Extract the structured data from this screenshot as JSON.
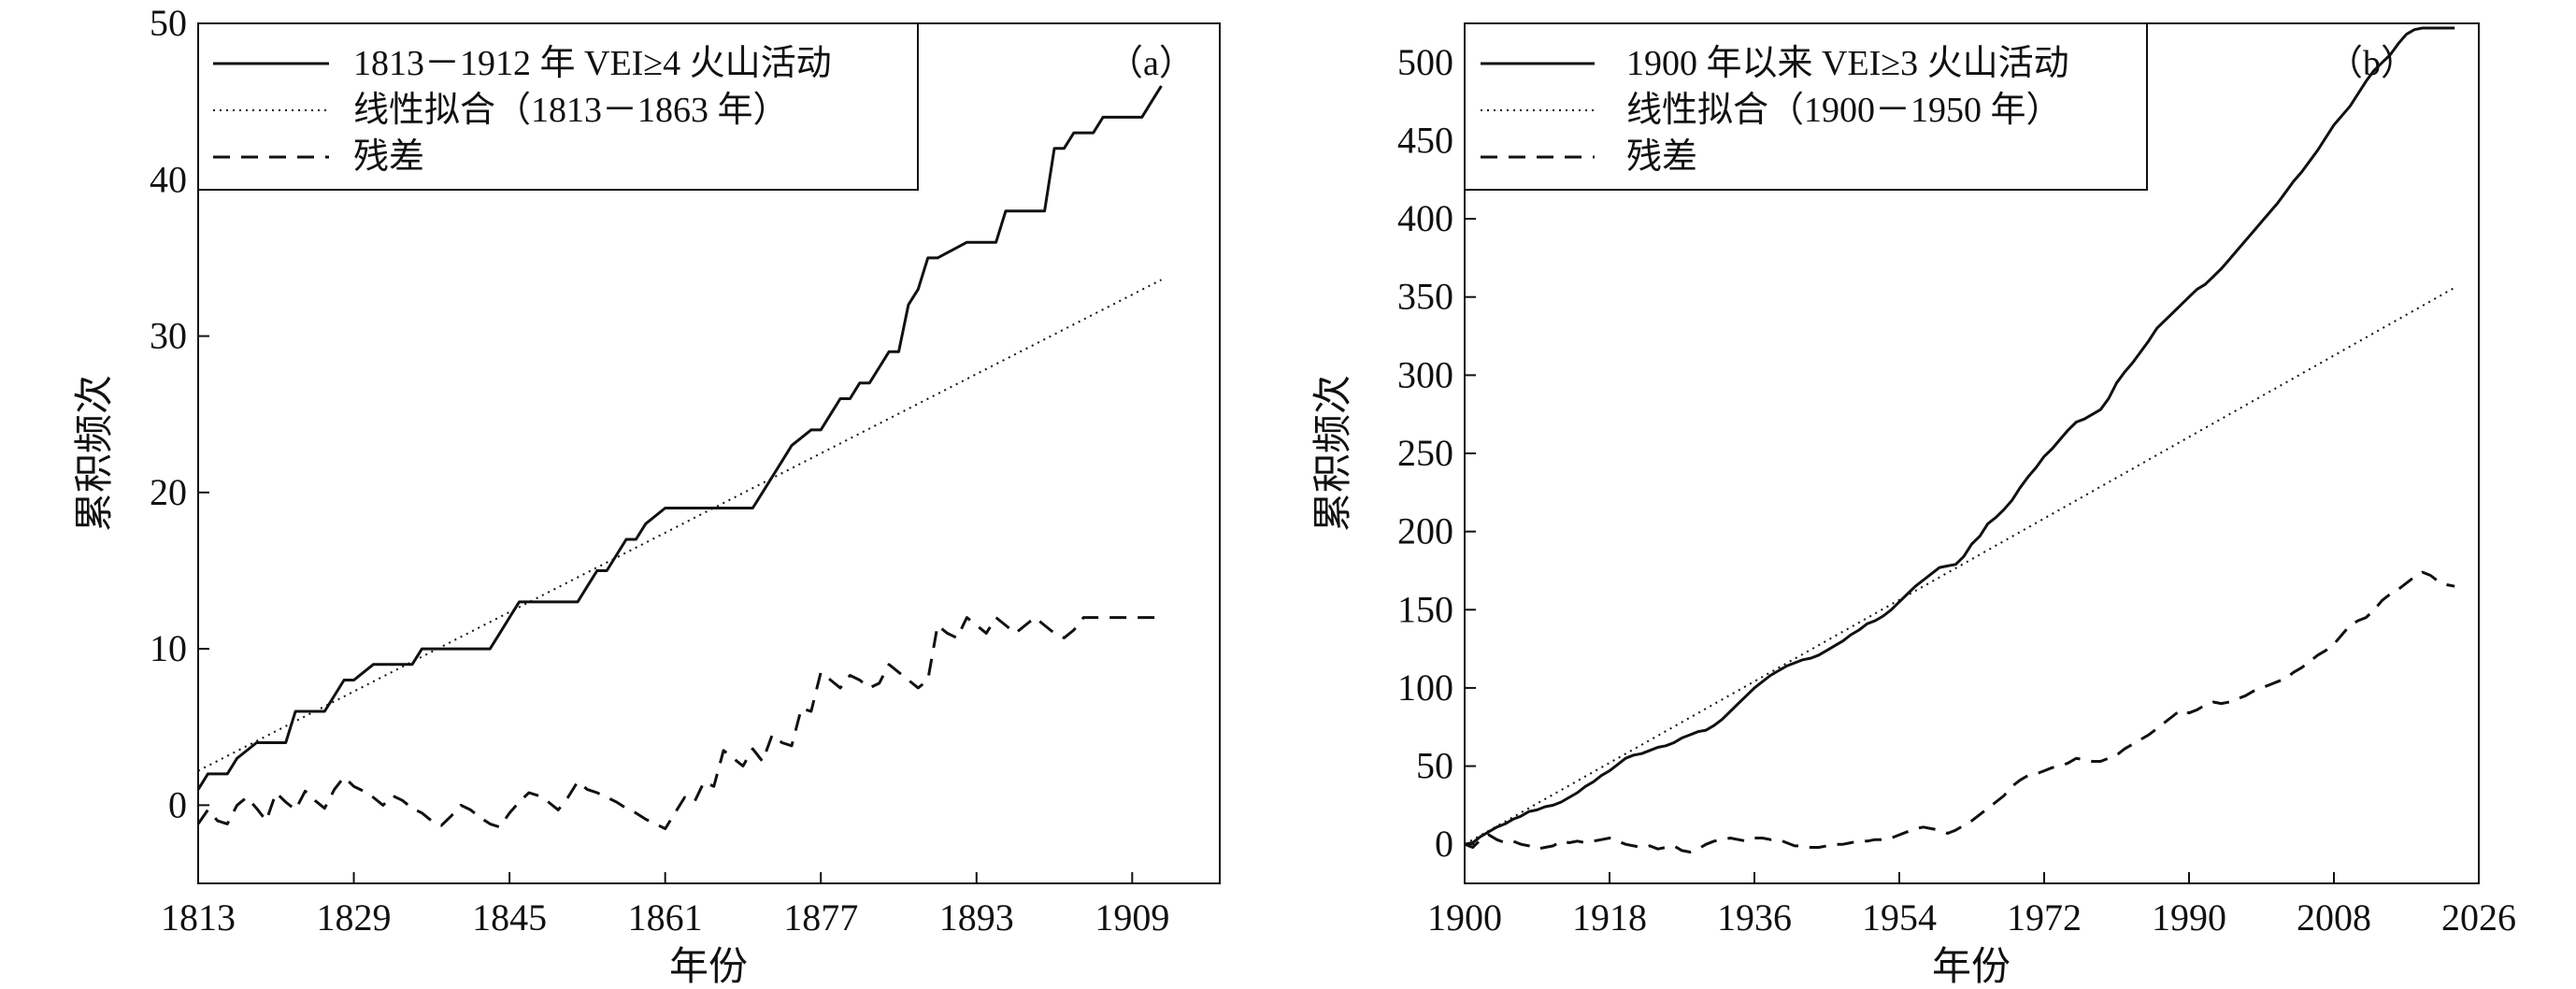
{
  "chart_data": [
    {
      "type": "line",
      "panel_label": "（a）",
      "xlabel": "年份",
      "ylabel": "累积频次",
      "xlim": [
        1813,
        1918
      ],
      "ylim": [
        -5,
        50
      ],
      "xticks": [
        "1813",
        "1829",
        "1845",
        "1861",
        "1877",
        "1893",
        "1909"
      ],
      "yticks": [
        "0",
        "10",
        "20",
        "30",
        "40",
        "50"
      ],
      "legend_position": "top-left",
      "series": [
        {
          "name": "1813－1912 年 VEI≥4 火山活动",
          "style": "solid",
          "color": "#111111",
          "x": [
            1813,
            1814,
            1816,
            1817,
            1819,
            1820,
            1822,
            1823,
            1825,
            1826,
            1828,
            1829,
            1831,
            1832,
            1835,
            1836,
            1838,
            1839,
            1843,
            1844,
            1845,
            1846,
            1847,
            1848,
            1852,
            1853,
            1854,
            1855,
            1857,
            1858,
            1859,
            1861,
            1867,
            1868,
            1869,
            1870,
            1871,
            1872,
            1873,
            1874,
            1876,
            1877,
            1878,
            1879,
            1880,
            1881,
            1882,
            1883,
            1884,
            1885,
            1886,
            1887,
            1888,
            1889,
            1892,
            1893,
            1895,
            1896,
            1900,
            1901,
            1902,
            1903,
            1905,
            1906,
            1909,
            1910,
            1911,
            1912
          ],
          "y": [
            1,
            2,
            2,
            3,
            4,
            4,
            4,
            6,
            6,
            6,
            8,
            8,
            9,
            9,
            9,
            10,
            10,
            10,
            10,
            11,
            12,
            13,
            13,
            13,
            13,
            14,
            15,
            15,
            17,
            17,
            18,
            19,
            19,
            19,
            19,
            19,
            20,
            21,
            22,
            23,
            24,
            24,
            25,
            26,
            26,
            27,
            27,
            28,
            29,
            29,
            32,
            33,
            35,
            35,
            36,
            36,
            36,
            38,
            38,
            42,
            42,
            43,
            43,
            44,
            44,
            44,
            45,
            46
          ]
        },
        {
          "name": "线性拟合（1813－1863 年）",
          "style": "dotted",
          "color": "#111111",
          "x": [
            1813,
            1912
          ],
          "y": [
            2.2,
            33.6
          ]
        },
        {
          "name": "残差",
          "style": "dashed",
          "color": "#111111",
          "x": [
            1813,
            1814,
            1815,
            1816,
            1817,
            1818,
            1819,
            1820,
            1821,
            1822,
            1823,
            1824,
            1825,
            1826,
            1827,
            1828,
            1829,
            1830,
            1831,
            1832,
            1833,
            1834,
            1835,
            1836,
            1837,
            1838,
            1839,
            1840,
            1841,
            1842,
            1843,
            1844,
            1845,
            1846,
            1847,
            1848,
            1849,
            1850,
            1851,
            1852,
            1853,
            1854,
            1855,
            1856,
            1857,
            1858,
            1859,
            1860,
            1861,
            1862,
            1863,
            1864,
            1865,
            1866,
            1867,
            1868,
            1869,
            1870,
            1871,
            1872,
            1873,
            1874,
            1875,
            1876,
            1877,
            1878,
            1879,
            1880,
            1881,
            1882,
            1883,
            1884,
            1885,
            1886,
            1887,
            1888,
            1889,
            1890,
            1891,
            1892,
            1893,
            1894,
            1895,
            1896,
            1897,
            1898,
            1899,
            1900,
            1901,
            1902,
            1903,
            1904,
            1905,
            1906,
            1907,
            1908,
            1909,
            1910,
            1911,
            1912
          ],
          "y": [
            -1.2,
            -0.3,
            -1,
            -1.2,
            0,
            0.5,
            -0.2,
            -1,
            0.8,
            0.2,
            -0.3,
            0.9,
            0.3,
            -0.2,
            1,
            1.8,
            1.2,
            0.9,
            0.5,
            0,
            0.6,
            0.3,
            -0.2,
            -0.5,
            -1,
            -1.3,
            -0.7,
            0,
            -0.3,
            -0.8,
            -1.2,
            -1.4,
            -0.5,
            0.2,
            0.8,
            0.6,
            0.2,
            -0.3,
            0.5,
            1.5,
            1,
            0.8,
            0.5,
            0.2,
            -0.2,
            -0.5,
            -0.9,
            -1.2,
            -1.5,
            -0.5,
            0.5,
            0.2,
            1.5,
            1.2,
            3.5,
            3,
            2.5,
            3.6,
            2.8,
            4.5,
            4,
            3.8,
            6.2,
            6,
            8.5,
            8,
            7.5,
            8.3,
            8,
            7.5,
            7.8,
            9,
            8.5,
            8,
            7.5,
            8,
            11.5,
            11,
            10.7,
            12,
            11.5,
            11,
            12,
            11.5,
            11,
            11.5,
            12,
            11.5,
            11,
            10.7,
            11.2,
            12,
            12,
            12,
            12,
            12,
            12,
            12,
            12,
            12
          ]
        }
      ]
    },
    {
      "type": "line",
      "panel_label": "（b）",
      "xlabel": "年份",
      "ylabel": "累积频次",
      "xlim": [
        1900,
        2026
      ],
      "ylim": [
        -25,
        525
      ],
      "xticks": [
        "1900",
        "1918",
        "1936",
        "1954",
        "1972",
        "1990",
        "2008",
        "2026"
      ],
      "yticks": [
        "0",
        "50",
        "100",
        "150",
        "200",
        "250",
        "300",
        "350",
        "400",
        "450",
        "500"
      ],
      "legend_position": "top-left",
      "series": [
        {
          "name": "1900 年以来 VEI≥3 火山活动",
          "style": "solid",
          "color": "#111111",
          "x": [
            1900,
            1901,
            1902,
            1903,
            1904,
            1905,
            1906,
            1907,
            1908,
            1909,
            1910,
            1911,
            1912,
            1913,
            1914,
            1915,
            1916,
            1917,
            1918,
            1919,
            1920,
            1921,
            1922,
            1923,
            1924,
            1925,
            1926,
            1927,
            1928,
            1929,
            1930,
            1931,
            1932,
            1933,
            1934,
            1935,
            1936,
            1937,
            1938,
            1939,
            1940,
            1941,
            1942,
            1943,
            1944,
            1945,
            1946,
            1947,
            1948,
            1949,
            1950,
            1951,
            1952,
            1953,
            1954,
            1955,
            1956,
            1957,
            1958,
            1959,
            1960,
            1961,
            1962,
            1963,
            1964,
            1965,
            1966,
            1967,
            1968,
            1969,
            1970,
            1971,
            1972,
            1973,
            1974,
            1975,
            1976,
            1977,
            1978,
            1979,
            1980,
            1981,
            1982,
            1983,
            1984,
            1985,
            1986,
            1987,
            1988,
            1989,
            1990,
            1991,
            1992,
            1993,
            1994,
            1995,
            1996,
            1997,
            1998,
            1999,
            2000,
            2001,
            2002,
            2003,
            2004,
            2005,
            2006,
            2007,
            2008,
            2009,
            2010,
            2011,
            2012,
            2013,
            2014,
            2015,
            2016,
            2017,
            2018,
            2019,
            2020,
            2021,
            2022,
            2023
          ],
          "y": [
            0,
            1,
            5,
            8,
            11,
            13,
            16,
            18,
            21,
            22,
            24,
            25,
            27,
            30,
            33,
            37,
            40,
            44,
            47,
            51,
            55,
            57,
            58,
            60,
            62,
            63,
            65,
            68,
            70,
            72,
            73,
            76,
            80,
            85,
            90,
            95,
            100,
            104,
            108,
            111,
            114,
            116,
            118,
            119,
            121,
            124,
            127,
            130,
            134,
            137,
            141,
            143,
            146,
            150,
            155,
            160,
            165,
            169,
            173,
            177,
            178,
            179,
            184,
            192,
            197,
            205,
            209,
            214,
            220,
            228,
            235,
            241,
            248,
            253,
            259,
            265,
            270,
            272,
            275,
            278,
            285,
            295,
            302,
            308,
            315,
            322,
            330,
            335,
            340,
            345,
            350,
            355,
            358,
            363,
            368,
            374,
            380,
            386,
            392,
            398,
            404,
            410,
            417,
            424,
            430,
            437,
            444,
            452,
            460,
            466,
            472,
            480,
            488,
            495,
            500,
            505,
            512,
            518,
            521,
            522,
            522,
            522,
            522,
            522
          ]
        },
        {
          "name": "线性拟合（1900－1950 年）",
          "style": "dotted",
          "color": "#111111",
          "x": [
            1900,
            2023
          ],
          "y": [
            0,
            356
          ]
        },
        {
          "name": "残差",
          "style": "dashed",
          "color": "#111111",
          "x": [
            1900,
            1901,
            1902,
            1903,
            1904,
            1905,
            1906,
            1907,
            1908,
            1909,
            1910,
            1911,
            1912,
            1913,
            1914,
            1915,
            1916,
            1917,
            1918,
            1919,
            1920,
            1921,
            1922,
            1923,
            1924,
            1925,
            1926,
            1927,
            1928,
            1929,
            1930,
            1931,
            1932,
            1933,
            1934,
            1935,
            1936,
            1937,
            1938,
            1939,
            1940,
            1941,
            1942,
            1943,
            1944,
            1945,
            1946,
            1947,
            1948,
            1949,
            1950,
            1951,
            1952,
            1953,
            1954,
            1955,
            1956,
            1957,
            1958,
            1959,
            1960,
            1961,
            1962,
            1963,
            1964,
            1965,
            1966,
            1967,
            1968,
            1969,
            1970,
            1971,
            1972,
            1973,
            1974,
            1975,
            1976,
            1977,
            1978,
            1979,
            1980,
            1981,
            1982,
            1983,
            1984,
            1985,
            1986,
            1987,
            1988,
            1989,
            1990,
            1991,
            1992,
            1993,
            1994,
            1995,
            1996,
            1997,
            1998,
            1999,
            2000,
            2001,
            2002,
            2003,
            2004,
            2005,
            2006,
            2007,
            2008,
            2009,
            2010,
            2011,
            2012,
            2013,
            2014,
            2015,
            2016,
            2017,
            2018,
            2019,
            2020,
            2021,
            2022,
            2023
          ],
          "y": [
            0,
            -2,
            3,
            6,
            3,
            1,
            2,
            0,
            -1,
            -3,
            -2,
            -1,
            2,
            1,
            2,
            1,
            2,
            3,
            4,
            2,
            0,
            -1,
            -2,
            -1,
            -3,
            -2,
            -1,
            -4,
            -5,
            -3,
            0,
            2,
            3,
            4,
            3,
            2,
            4,
            4,
            3,
            3,
            1,
            -1,
            -1,
            -2,
            -2,
            -1,
            0,
            0,
            1,
            2,
            2,
            3,
            3,
            4,
            6,
            8,
            10,
            11,
            10,
            9,
            7,
            9,
            12,
            15,
            19,
            23,
            27,
            31,
            37,
            41,
            44,
            45,
            47,
            49,
            50,
            52,
            55,
            54,
            53,
            53,
            55,
            57,
            61,
            64,
            67,
            70,
            74,
            78,
            82,
            86,
            84,
            86,
            89,
            91,
            90,
            91,
            93,
            95,
            98,
            100,
            102,
            104,
            106,
            110,
            113,
            117,
            121,
            124,
            128,
            134,
            140,
            143,
            145,
            150,
            156,
            160,
            163,
            167,
            171,
            174,
            172,
            168,
            166,
            165
          ]
        }
      ]
    }
  ]
}
